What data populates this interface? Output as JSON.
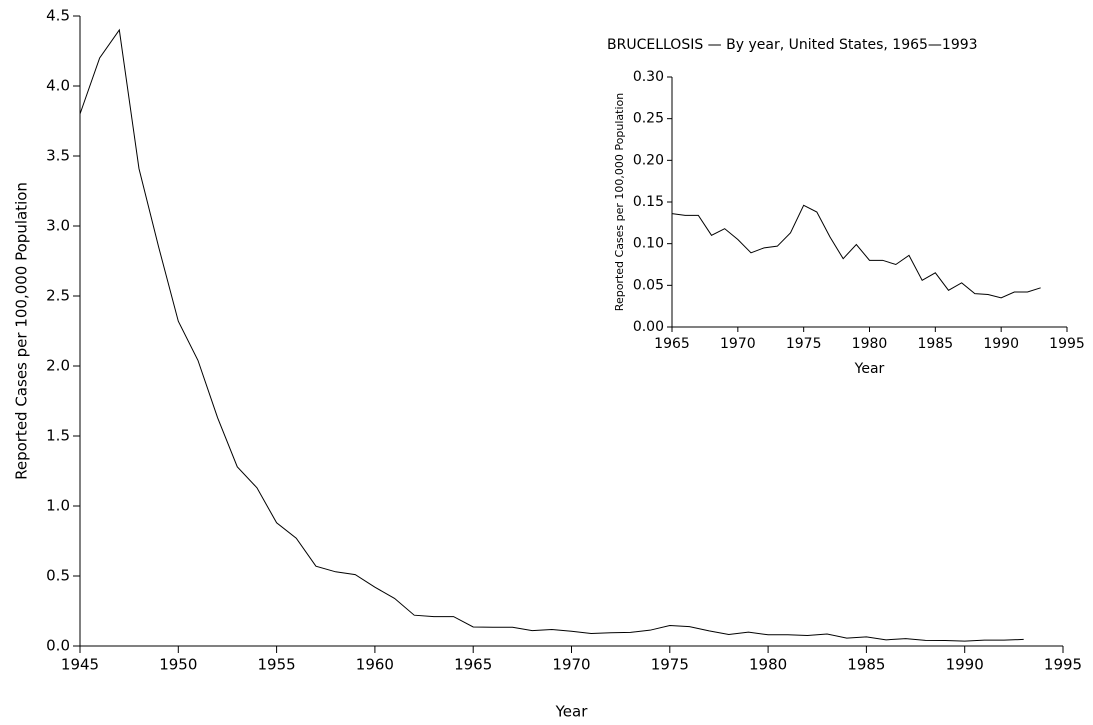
{
  "chart_data": [
    {
      "type": "line",
      "x_label": "Year",
      "y_label": "Reported Cases per 100,000 Population",
      "x": [
        1945,
        1946,
        1947,
        1948,
        1949,
        1950,
        1951,
        1952,
        1953,
        1954,
        1955,
        1956,
        1957,
        1958,
        1959,
        1960,
        1961,
        1962,
        1963,
        1964,
        1965,
        1966,
        1967,
        1968,
        1969,
        1970,
        1971,
        1972,
        1973,
        1974,
        1975,
        1976,
        1977,
        1978,
        1979,
        1980,
        1981,
        1982,
        1983,
        1984,
        1985,
        1986,
        1987,
        1988,
        1989,
        1990,
        1991,
        1992,
        1993
      ],
      "series": [
        {
          "color": "#000000",
          "values": [
            3.8,
            4.2,
            4.4,
            3.41,
            2.85,
            2.32,
            2.04,
            1.63,
            1.28,
            1.13,
            0.88,
            0.77,
            0.57,
            0.53,
            0.51,
            0.42,
            0.34,
            0.22,
            0.21,
            0.21,
            0.136,
            0.134,
            0.134,
            0.11,
            0.118,
            0.105,
            0.089,
            0.095,
            0.097,
            0.113,
            0.146,
            0.138,
            0.108,
            0.082,
            0.099,
            0.08,
            0.08,
            0.075,
            0.086,
            0.056,
            0.065,
            0.044,
            0.053,
            0.04,
            0.039,
            0.035,
            0.042,
            0.042,
            0.047
          ]
        }
      ],
      "xlim": [
        1945,
        1995
      ],
      "xticks": [
        1945,
        1950,
        1955,
        1960,
        1965,
        1970,
        1975,
        1980,
        1985,
        1990,
        1995
      ],
      "ylim": [
        0,
        4.5
      ],
      "yticks": [
        {
          "value": 0,
          "label": "0.0"
        },
        0.5,
        {
          "value": 1,
          "label": "1.0"
        },
        1.5,
        {
          "value": 2,
          "label": "2.0"
        },
        2.5,
        {
          "value": 3,
          "label": "3.0"
        },
        3.5,
        {
          "value": 4,
          "label": "4.0"
        },
        4.5
      ]
    },
    {
      "type": "line",
      "title": "BRUCELLOSIS — By year, United States, 1965—1993",
      "x_label": "Year",
      "y_label": "Reported Cases per 100,000 Population",
      "x": [
        1965,
        1966,
        1967,
        1968,
        1969,
        1970,
        1971,
        1972,
        1973,
        1974,
        1975,
        1976,
        1977,
        1978,
        1979,
        1980,
        1981,
        1982,
        1983,
        1984,
        1985,
        1986,
        1987,
        1988,
        1989,
        1990,
        1991,
        1992,
        1993
      ],
      "series": [
        {
          "color": "#000000",
          "values": [
            0.136,
            0.134,
            0.134,
            0.11,
            0.118,
            0.105,
            0.089,
            0.095,
            0.097,
            0.113,
            0.146,
            0.138,
            0.108,
            0.082,
            0.099,
            0.08,
            0.08,
            0.075,
            0.086,
            0.056,
            0.065,
            0.044,
            0.053,
            0.04,
            0.039,
            0.035,
            0.042,
            0.042,
            0.047
          ]
        }
      ],
      "xlim": [
        1965,
        1995
      ],
      "xticks": [
        1965,
        1970,
        1975,
        1980,
        1985,
        1990,
        1995
      ],
      "ylim": [
        0,
        0.3
      ],
      "yticks": [
        {
          "value": 0,
          "label": "0.00"
        },
        {
          "value": 0.05,
          "label": "0.05"
        },
        {
          "value": 0.1,
          "label": "0.10"
        },
        {
          "value": 0.15,
          "label": "0.15"
        },
        {
          "value": 0.2,
          "label": "0.20"
        },
        {
          "value": 0.25,
          "label": "0.25"
        },
        {
          "value": 0.3,
          "label": "0.30"
        }
      ]
    }
  ]
}
